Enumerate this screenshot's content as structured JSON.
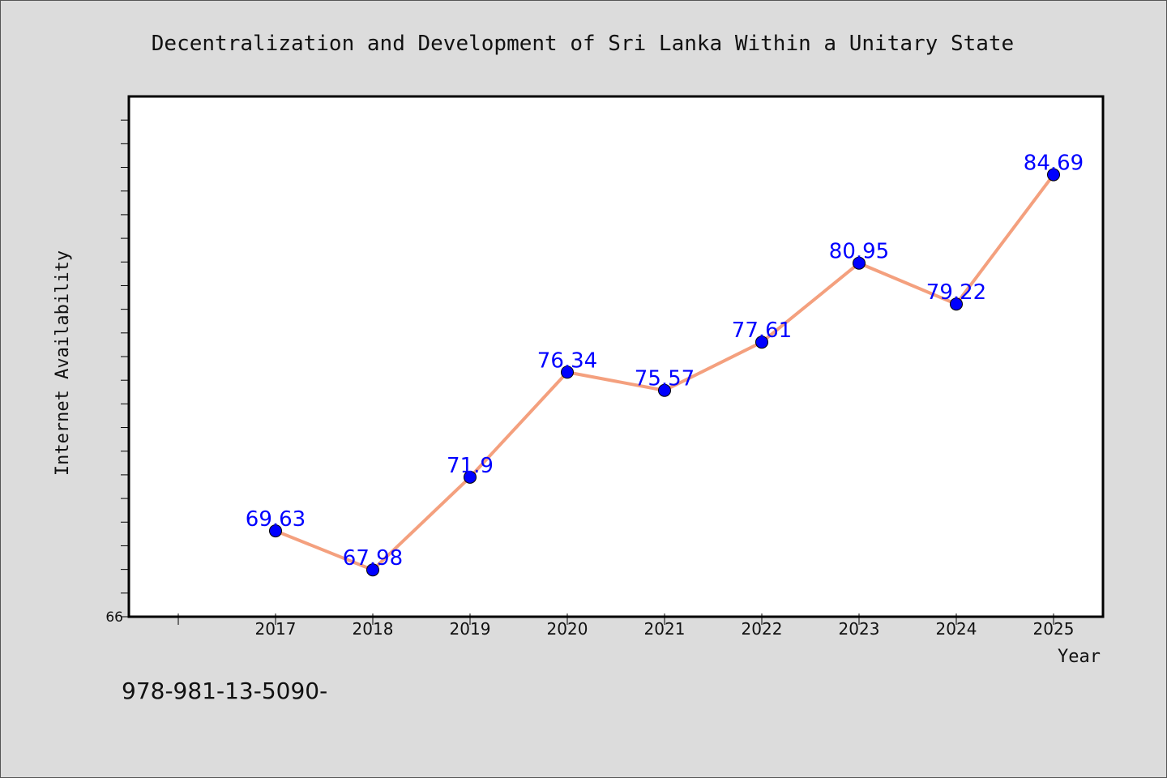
{
  "chart_data": {
    "type": "line",
    "title": "Decentralization and Development of Sri Lanka Within a Unitary State",
    "xlabel": "Year",
    "ylabel": "Internet Availability",
    "x": [
      "2017",
      "2018",
      "2019",
      "2020",
      "2021",
      "2022",
      "2023",
      "2024",
      "2025"
    ],
    "series": [
      {
        "values": [
          69.63,
          67.98,
          71.9,
          76.34,
          75.57,
          77.61,
          80.95,
          79.22,
          84.69
        ],
        "labels": [
          "69.63",
          "67.98",
          "71.9",
          "76.34",
          "75.57",
          "77.61",
          "80.95",
          "79.22",
          "84.69"
        ]
      }
    ],
    "y_tick_labels": [
      "66"
    ],
    "ylim": [
      66,
      88
    ],
    "grid": false,
    "legend": "none",
    "colors": {
      "line": "#f4a07e",
      "marker": "#0000ff",
      "data_label": "#0000ff"
    }
  },
  "footer_text": "978-981-13-5090-"
}
